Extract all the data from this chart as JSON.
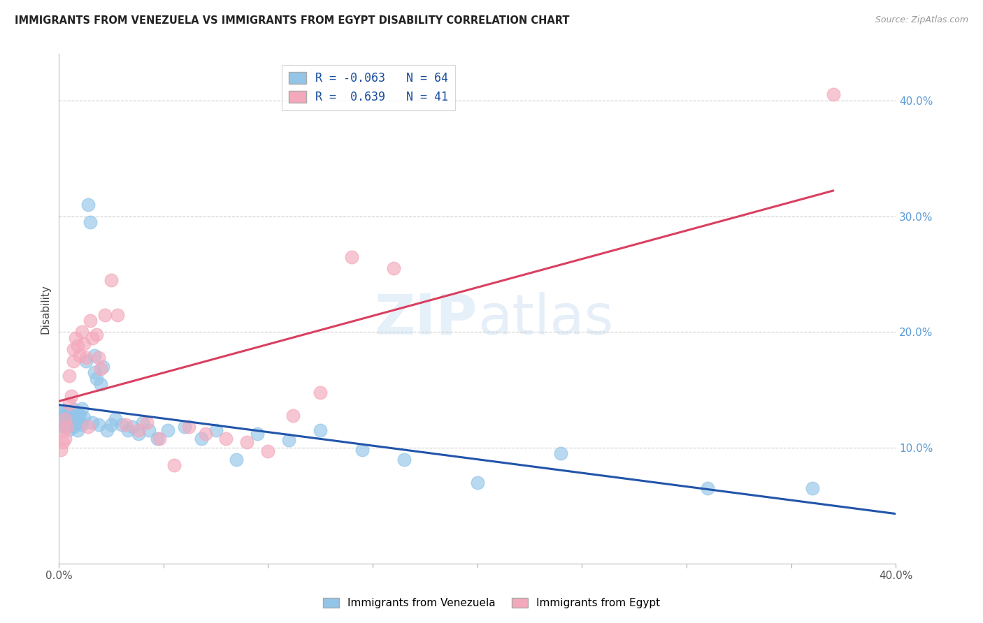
{
  "title": "IMMIGRANTS FROM VENEZUELA VS IMMIGRANTS FROM EGYPT DISABILITY CORRELATION CHART",
  "source": "Source: ZipAtlas.com",
  "ylabel": "Disability",
  "xlim": [
    0.0,
    0.4
  ],
  "ylim": [
    0.0,
    0.44
  ],
  "y_ticks_right": [
    0.1,
    0.2,
    0.3,
    0.4
  ],
  "y_tick_labels_right": [
    "10.0%",
    "20.0%",
    "30.0%",
    "40.0%"
  ],
  "legend_r_venezuela": "-0.063",
  "legend_n_venezuela": "64",
  "legend_r_egypt": "0.639",
  "legend_n_egypt": "41",
  "color_venezuela": "#92C5E8",
  "color_egypt": "#F4A8BC",
  "color_line_venezuela": "#2255AA",
  "color_line_egypt": "#D94060",
  "venezuela_x": [
    0.001,
    0.001,
    0.001,
    0.002,
    0.002,
    0.002,
    0.003,
    0.003,
    0.003,
    0.004,
    0.004,
    0.004,
    0.005,
    0.005,
    0.005,
    0.005,
    0.006,
    0.006,
    0.007,
    0.007,
    0.007,
    0.008,
    0.008,
    0.009,
    0.009,
    0.01,
    0.01,
    0.011,
    0.011,
    0.012,
    0.013,
    0.014,
    0.015,
    0.016,
    0.017,
    0.017,
    0.018,
    0.019,
    0.02,
    0.021,
    0.023,
    0.025,
    0.027,
    0.03,
    0.033,
    0.035,
    0.038,
    0.04,
    0.043,
    0.047,
    0.052,
    0.06,
    0.068,
    0.075,
    0.085,
    0.095,
    0.11,
    0.125,
    0.145,
    0.165,
    0.2,
    0.24,
    0.31,
    0.36
  ],
  "venezuela_y": [
    0.13,
    0.125,
    0.12,
    0.128,
    0.122,
    0.118,
    0.132,
    0.126,
    0.121,
    0.129,
    0.124,
    0.119,
    0.131,
    0.127,
    0.123,
    0.116,
    0.128,
    0.122,
    0.133,
    0.124,
    0.118,
    0.127,
    0.121,
    0.13,
    0.115,
    0.128,
    0.122,
    0.134,
    0.12,
    0.126,
    0.175,
    0.31,
    0.295,
    0.122,
    0.18,
    0.165,
    0.16,
    0.12,
    0.155,
    0.17,
    0.115,
    0.12,
    0.125,
    0.12,
    0.115,
    0.118,
    0.112,
    0.122,
    0.115,
    0.108,
    0.115,
    0.118,
    0.108,
    0.115,
    0.09,
    0.112,
    0.107,
    0.115,
    0.098,
    0.09,
    0.07,
    0.095,
    0.065,
    0.065
  ],
  "egypt_x": [
    0.001,
    0.002,
    0.002,
    0.003,
    0.003,
    0.004,
    0.005,
    0.005,
    0.006,
    0.007,
    0.007,
    0.008,
    0.009,
    0.01,
    0.011,
    0.012,
    0.013,
    0.014,
    0.015,
    0.016,
    0.018,
    0.019,
    0.02,
    0.022,
    0.025,
    0.028,
    0.032,
    0.038,
    0.042,
    0.048,
    0.055,
    0.062,
    0.07,
    0.08,
    0.09,
    0.1,
    0.112,
    0.125,
    0.14,
    0.16,
    0.37
  ],
  "egypt_y": [
    0.098,
    0.105,
    0.115,
    0.125,
    0.108,
    0.118,
    0.138,
    0.162,
    0.145,
    0.185,
    0.175,
    0.195,
    0.188,
    0.18,
    0.2,
    0.19,
    0.178,
    0.118,
    0.21,
    0.195,
    0.198,
    0.178,
    0.168,
    0.215,
    0.245,
    0.215,
    0.12,
    0.115,
    0.122,
    0.108,
    0.085,
    0.118,
    0.112,
    0.108,
    0.105,
    0.097,
    0.128,
    0.148,
    0.265,
    0.255,
    0.405
  ]
}
